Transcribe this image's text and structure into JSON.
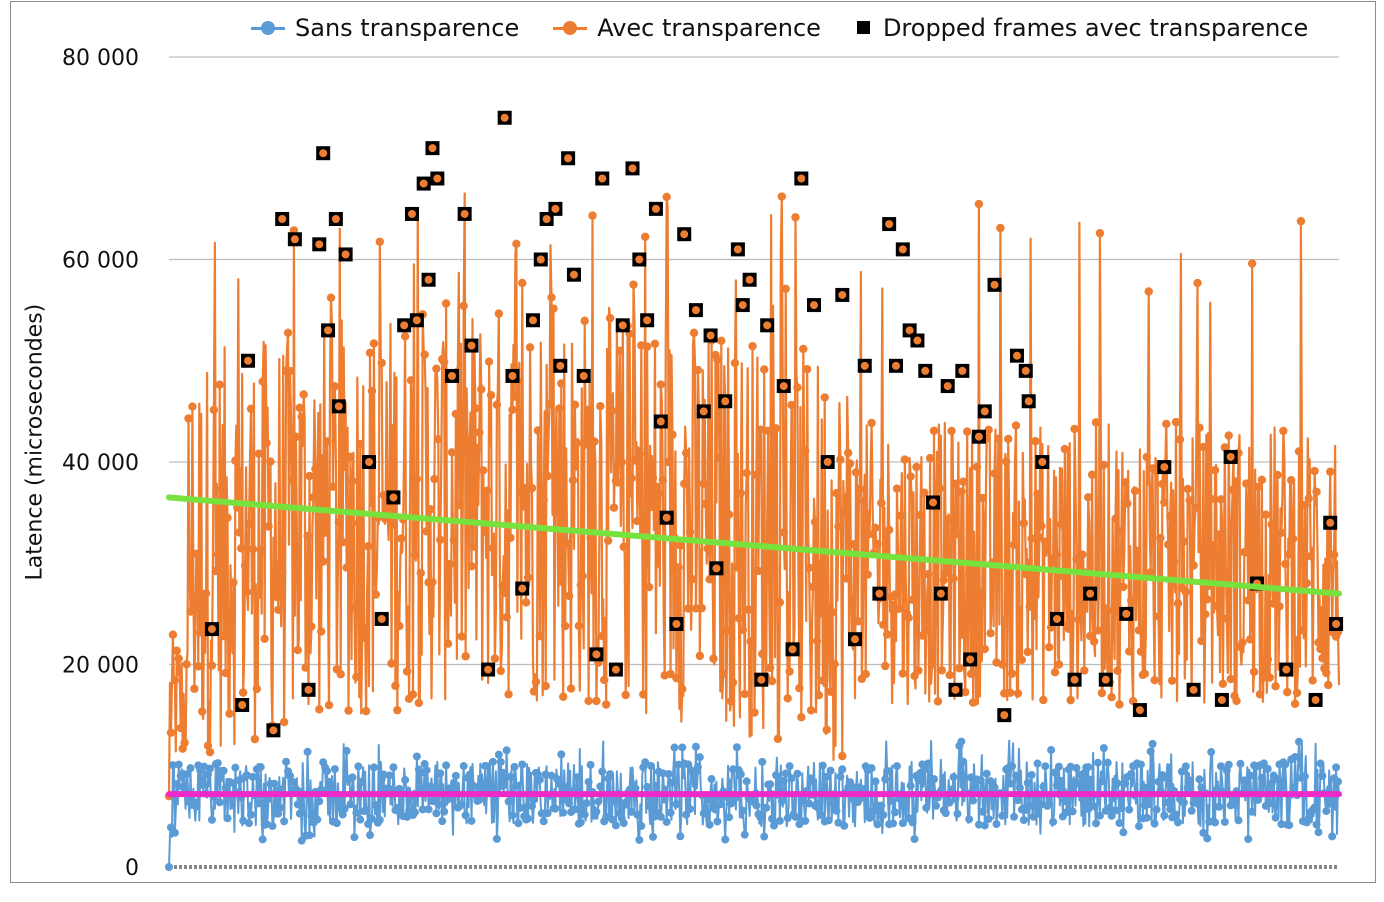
{
  "chart_data": {
    "type": "line",
    "xlabel": "",
    "ylabel": "Latence (microsecondes)",
    "ylim": [
      0,
      80000
    ],
    "yticks": [
      0,
      20000,
      40000,
      60000,
      80000
    ],
    "ytick_labels": [
      "0",
      "20 000",
      "40 000",
      "60 000",
      "80 000"
    ],
    "grid": "horizontal",
    "legend_position": "top",
    "legend": [
      "Sans transparence",
      "Avec transparence",
      "Dropped frames avec transparence"
    ],
    "n_samples": 1200,
    "series": [
      {
        "name": "Sans transparence",
        "color": "#5b9bd5",
        "marker": "circle",
        "typical_range": [
          3000,
          10000
        ],
        "start_value": 0,
        "max_value": 12500,
        "min_value": 2500,
        "trend_value": 7200,
        "sample_values": [
          0,
          2500,
          8000,
          12000,
          6500,
          9000,
          4200,
          11000,
          7000,
          5000,
          9500,
          6000,
          8800,
          3500,
          10200,
          7400,
          6100,
          9200,
          4800,
          8600
        ]
      },
      {
        "name": "Avec transparence",
        "color": "#ed7d31",
        "marker": "circle",
        "typical_range": [
          15000,
          50000
        ],
        "start_value": 7000,
        "max_value": 74000,
        "min_value": 7000,
        "sample_values": [
          16000,
          22000,
          15000,
          45000,
          50500,
          23500,
          56000,
          32000,
          64000,
          47000,
          70500,
          38000,
          52000,
          67500,
          25000,
          58500,
          29000,
          71000,
          44000,
          74000,
          36000,
          69500,
          31000,
          65000,
          42000,
          68000,
          27000,
          56000,
          38000,
          46000,
          29000,
          42000,
          33000,
          25000,
          46000,
          30000,
          37000,
          22000,
          45000,
          28000,
          41000,
          20000,
          50500,
          27000,
          47000,
          34000,
          24000,
          41500
        ]
      },
      {
        "name": "Dropped frames avec transparence",
        "color": "#000000",
        "marker": "square",
        "points": [
          [
            44,
            23500
          ],
          [
            75,
            16000
          ],
          [
            81,
            50000
          ],
          [
            107,
            13500
          ],
          [
            116,
            64000
          ],
          [
            129,
            62000
          ],
          [
            143,
            17500
          ],
          [
            154,
            61500
          ],
          [
            158,
            70500
          ],
          [
            163,
            53000
          ],
          [
            171,
            64000
          ],
          [
            174,
            45500
          ],
          [
            181,
            60500
          ],
          [
            205,
            40000
          ],
          [
            218,
            24500
          ],
          [
            230,
            36500
          ],
          [
            241,
            53500
          ],
          [
            249,
            64500
          ],
          [
            254,
            54000
          ],
          [
            261,
            67500
          ],
          [
            266,
            58000
          ],
          [
            270,
            71000
          ],
          [
            275,
            68000
          ],
          [
            290,
            48500
          ],
          [
            303,
            64500
          ],
          [
            310,
            51500
          ],
          [
            327,
            19500
          ],
          [
            344,
            74000
          ],
          [
            352,
            48500
          ],
          [
            362,
            27500
          ],
          [
            373,
            54000
          ],
          [
            381,
            60000
          ],
          [
            387,
            64000
          ],
          [
            396,
            65000
          ],
          [
            401,
            49500
          ],
          [
            409,
            70000
          ],
          [
            415,
            58500
          ],
          [
            425,
            48500
          ],
          [
            438,
            21000
          ],
          [
            444,
            68000
          ],
          [
            458,
            19500
          ],
          [
            465,
            53500
          ],
          [
            475,
            69000
          ],
          [
            482,
            60000
          ],
          [
            490,
            54000
          ],
          [
            499,
            65000
          ],
          [
            504,
            44000
          ],
          [
            510,
            34500
          ],
          [
            520,
            24000
          ],
          [
            528,
            62500
          ],
          [
            540,
            55000
          ],
          [
            548,
            45000
          ],
          [
            555,
            52500
          ],
          [
            561,
            29500
          ],
          [
            570,
            46000
          ],
          [
            583,
            61000
          ],
          [
            588,
            55500
          ],
          [
            595,
            58000
          ],
          [
            607,
            18500
          ],
          [
            613,
            53500
          ],
          [
            630,
            47500
          ],
          [
            639,
            21500
          ],
          [
            648,
            68000
          ],
          [
            661,
            55500
          ],
          [
            675,
            40000
          ],
          [
            690,
            56500
          ],
          [
            703,
            22500
          ],
          [
            713,
            49500
          ],
          [
            728,
            27000
          ],
          [
            738,
            63500
          ],
          [
            745,
            49500
          ],
          [
            752,
            61000
          ],
          [
            759,
            53000
          ],
          [
            767,
            52000
          ],
          [
            775,
            49000
          ],
          [
            783,
            36000
          ],
          [
            791,
            27000
          ],
          [
            798,
            47500
          ],
          [
            806,
            17500
          ],
          [
            813,
            49000
          ],
          [
            821,
            20500
          ],
          [
            830,
            42500
          ],
          [
            836,
            45000
          ],
          [
            846,
            57500
          ],
          [
            856,
            15000
          ],
          [
            869,
            50500
          ],
          [
            878,
            49000
          ],
          [
            881,
            46000
          ],
          [
            895,
            40000
          ],
          [
            910,
            24500
          ],
          [
            928,
            18500
          ],
          [
            944,
            27000
          ],
          [
            960,
            18500
          ],
          [
            981,
            25000
          ],
          [
            995,
            15500
          ],
          [
            1020,
            39500
          ],
          [
            1050,
            17500
          ],
          [
            1079,
            16500
          ],
          [
            1088,
            40500
          ],
          [
            1115,
            28000
          ],
          [
            1145,
            19500
          ],
          [
            1175,
            16500
          ],
          [
            1190,
            34000
          ],
          [
            1196,
            24000
          ]
        ]
      },
      {
        "name": "",
        "color": "#77e23e",
        "type": "trendline",
        "from": [
          0,
          36500
        ],
        "to": [
          1200,
          27000
        ]
      },
      {
        "name": "",
        "color": "#ee2ac8",
        "type": "trendline",
        "from": [
          0,
          7200
        ],
        "to": [
          1200,
          7200
        ]
      }
    ]
  }
}
